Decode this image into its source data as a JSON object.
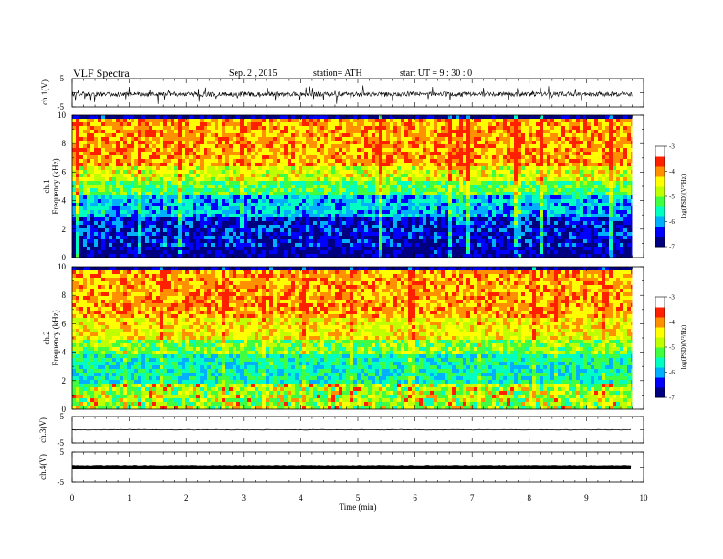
{
  "header": {
    "title": "VLF  Spectra",
    "date": "Sep. 2  , 2015",
    "station": "station= ATH",
    "start": "start  UT  =   9 : 30 : 0"
  },
  "colors": {
    "spectrogram_scale": [
      "#000080",
      "#0000ff",
      "#00b0ff",
      "#00ffc0",
      "#40ff40",
      "#c0ff00",
      "#ffff00",
      "#ff9000",
      "#ff2000",
      "#ffffff"
    ]
  },
  "chart_data": [
    {
      "type": "line",
      "panel": "ch1-waveform",
      "ylabel": "ch.1(V)",
      "ylim": [
        -5,
        5
      ],
      "ytick_labels": [
        "5",
        "-5"
      ],
      "xlim": [
        0,
        10
      ],
      "x_extent_min": 9.8,
      "baseline": -0.5,
      "grid": false
    },
    {
      "type": "heatmap",
      "panel": "ch1-spectrogram",
      "ylabel": "ch.1\nFrequency  (kHz)",
      "ylim": [
        0,
        10
      ],
      "ytick_labels": [
        "0",
        "2",
        "4",
        "6",
        "8",
        "10"
      ],
      "xlim": [
        0,
        10
      ],
      "x_extent_min": 9.8,
      "colorbar": {
        "label": "log(PSD)(V²/Hz)",
        "range": [
          -7,
          -3
        ],
        "tick_labels": [
          "-3",
          "-4",
          "-5",
          "-6",
          "-7"
        ]
      },
      "bands_khz": [
        {
          "from": 0,
          "to": 1,
          "logpsd": -7
        },
        {
          "from": 1,
          "to": 3,
          "logpsd": -6.6
        },
        {
          "from": 3,
          "to": 4.5,
          "logpsd": -5.9
        },
        {
          "from": 4.5,
          "to": 5.5,
          "logpsd": -5.0
        },
        {
          "from": 5.5,
          "to": 6.5,
          "logpsd": -4.3
        },
        {
          "from": 6.5,
          "to": 10,
          "logpsd": -3.6
        }
      ]
    },
    {
      "type": "heatmap",
      "panel": "ch2-spectrogram",
      "ylabel": "ch.2\nFrequency  (kHz)",
      "ylim": [
        0,
        10
      ],
      "ytick_labels": [
        "0",
        "2",
        "4",
        "6",
        "8",
        "10"
      ],
      "xlim": [
        0,
        10
      ],
      "x_extent_min": 9.8,
      "colorbar": {
        "label": "log(PSD)(V²/Hz)",
        "range": [
          -7,
          -3
        ],
        "tick_labels": [
          "-3",
          "-4",
          "-5",
          "-6",
          "-7"
        ]
      },
      "bands_khz": [
        {
          "from": 0,
          "to": 2,
          "logpsd": -4.8
        },
        {
          "from": 2,
          "to": 4,
          "logpsd": -5.5
        },
        {
          "from": 4,
          "to": 5,
          "logpsd": -4.8
        },
        {
          "from": 5,
          "to": 6.5,
          "logpsd": -4.1
        },
        {
          "from": 6.5,
          "to": 10,
          "logpsd": -3.6
        }
      ]
    },
    {
      "type": "line",
      "panel": "ch3-waveform",
      "ylabel": "ch.3(V)",
      "ylim": [
        -5,
        5
      ],
      "ytick_labels": [
        "5",
        "-5"
      ],
      "xlim": [
        0,
        10
      ],
      "x_extent_min": 9.8,
      "baseline": 0,
      "grid": false
    },
    {
      "type": "line",
      "panel": "ch4-waveform",
      "ylabel": "ch.4(V)",
      "ylim": [
        -5,
        5
      ],
      "ytick_labels": [
        "5",
        "-5"
      ],
      "xlim": [
        0,
        10
      ],
      "x_extent_min": 9.8,
      "baseline": 0,
      "grid": false
    }
  ],
  "xaxis": {
    "label": "Time  (min)",
    "tick_labels": [
      "0",
      "1",
      "2",
      "3",
      "4",
      "5",
      "6",
      "7",
      "8",
      "9",
      "10"
    ]
  }
}
